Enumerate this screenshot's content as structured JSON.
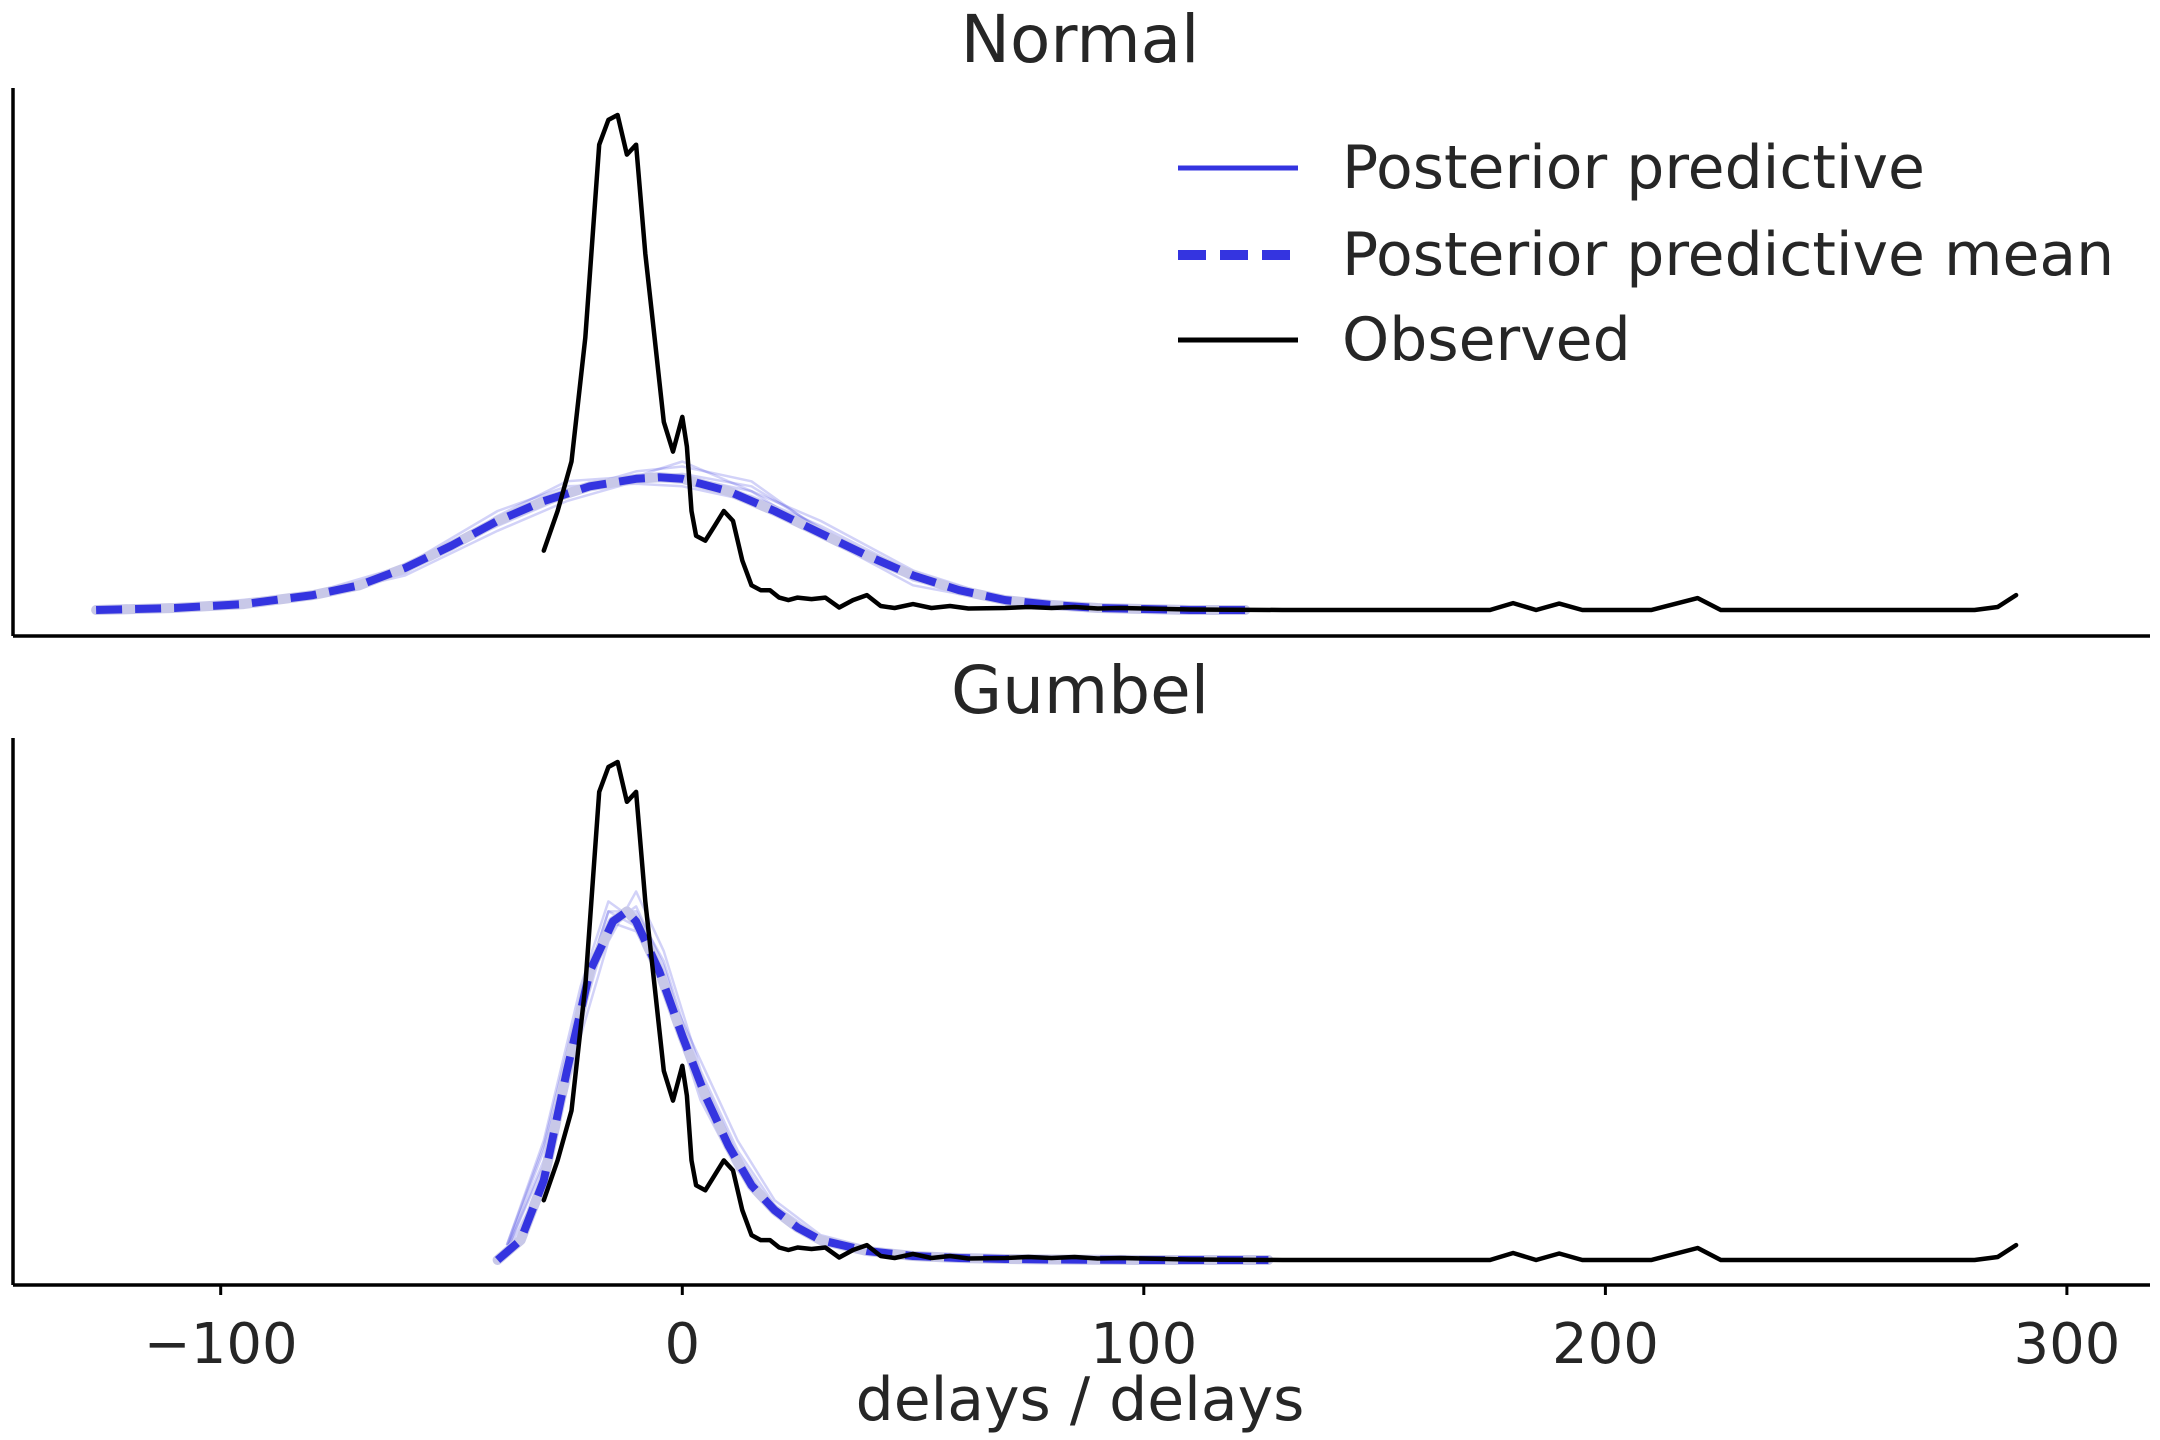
{
  "chart_data": {
    "type": "line",
    "xlabel": "delays / delays",
    "xlim": [
      -145,
      318
    ],
    "xticks": [
      -100,
      0,
      100,
      200,
      300
    ],
    "xtick_labels": [
      "−100",
      "0",
      "100",
      "200",
      "300"
    ],
    "grid": false,
    "legend_position": "top-right",
    "colors": {
      "predictive": "#3434e0",
      "observed": "#000000",
      "predictive_light": "#b8b8ef",
      "mean_light": "#c8c8e8"
    },
    "legend": [
      {
        "label": "Posterior predictive",
        "style": "solid",
        "color": "#3434e0"
      },
      {
        "label": "Posterior predictive mean",
        "style": "dashed",
        "color": "#3434e0"
      },
      {
        "label": "Observed",
        "style": "solid",
        "color": "#000000"
      }
    ],
    "panels": [
      {
        "title": "Normal",
        "ylim": [
          0,
          1.06
        ],
        "predictive_mean": {
          "name": "Posterior predictive mean",
          "x": [
            -127,
            -110,
            -95,
            -80,
            -70,
            -60,
            -50,
            -40,
            -30,
            -20,
            -10,
            -5,
            0,
            10,
            20,
            30,
            40,
            50,
            60,
            70,
            80,
            90,
            100,
            110,
            122
          ],
          "y": [
            0.0,
            0.004,
            0.012,
            0.03,
            0.05,
            0.085,
            0.13,
            0.18,
            0.22,
            0.25,
            0.265,
            0.268,
            0.265,
            0.24,
            0.2,
            0.155,
            0.11,
            0.07,
            0.04,
            0.02,
            0.01,
            0.004,
            0.002,
            0.0,
            0.0
          ]
        },
        "predictive_samples": {
          "name": "Posterior predictive",
          "x": [
            -110,
            -80,
            -60,
            -40,
            -25,
            -10,
            0,
            15,
            30,
            50,
            70,
            100
          ],
          "draws": [
            [
              0.004,
              0.03,
              0.08,
              0.18,
              0.24,
              0.28,
              0.29,
              0.26,
              0.16,
              0.06,
              0.016,
              0.002
            ],
            [
              0.004,
              0.026,
              0.07,
              0.16,
              0.22,
              0.26,
              0.27,
              0.24,
              0.18,
              0.08,
              0.02,
              0.002
            ],
            [
              0.006,
              0.035,
              0.09,
              0.2,
              0.25,
              0.255,
              0.25,
              0.22,
              0.15,
              0.07,
              0.024,
              0.004
            ],
            [
              0.005,
              0.03,
              0.085,
              0.17,
              0.23,
              0.27,
              0.3,
              0.24,
              0.15,
              0.05,
              0.015,
              0.003
            ],
            [
              0.003,
              0.028,
              0.075,
              0.19,
              0.26,
              0.27,
              0.26,
              0.23,
              0.17,
              0.075,
              0.022,
              0.003
            ],
            [
              0.005,
              0.032,
              0.082,
              0.175,
              0.235,
              0.265,
              0.275,
              0.25,
              0.165,
              0.065,
              0.02,
              0.003
            ]
          ]
        },
        "observed": {
          "name": "Observed",
          "x": [
            -30,
            -27,
            -24,
            -21,
            -18,
            -16,
            -14,
            -12,
            -10,
            -8,
            -6,
            -4,
            -2,
            0,
            1,
            2,
            3,
            5,
            7,
            9,
            11,
            13,
            15,
            17,
            19,
            21,
            23,
            25,
            28,
            31,
            34,
            37,
            40,
            43,
            46,
            50,
            54,
            58,
            62,
            70,
            75,
            80,
            85,
            90,
            95,
            100,
            110,
            130,
            150,
            175,
            180,
            185,
            190,
            195,
            210,
            220,
            225,
            240,
            260,
            280,
            285,
            289
          ],
          "y": [
            0.12,
            0.2,
            0.3,
            0.55,
            0.94,
            0.99,
            1.0,
            0.92,
            0.94,
            0.72,
            0.55,
            0.38,
            0.32,
            0.39,
            0.33,
            0.2,
            0.15,
            0.14,
            0.17,
            0.2,
            0.18,
            0.1,
            0.05,
            0.04,
            0.04,
            0.025,
            0.02,
            0.025,
            0.022,
            0.025,
            0.005,
            0.02,
            0.03,
            0.008,
            0.004,
            0.012,
            0.004,
            0.008,
            0.003,
            0.004,
            0.006,
            0.004,
            0.006,
            0.003,
            0.004,
            0.003,
            0.001,
            0.0,
            0.0,
            0.0,
            0.014,
            0.0,
            0.013,
            0.0,
            0.0,
            0.024,
            0.0,
            0.0,
            0.0,
            0.0,
            0.006,
            0.03
          ]
        }
      },
      {
        "title": "Gumbel",
        "ylim": [
          0,
          1.06
        ],
        "predictive_mean": {
          "name": "Posterior predictive mean",
          "x": [
            -40,
            -35,
            -30,
            -25,
            -20,
            -15,
            -12,
            -10,
            -5,
            0,
            5,
            10,
            15,
            20,
            25,
            30,
            40,
            50,
            60,
            70,
            80,
            100,
            127
          ],
          "y": [
            0.0,
            0.04,
            0.16,
            0.38,
            0.58,
            0.68,
            0.7,
            0.68,
            0.58,
            0.45,
            0.33,
            0.23,
            0.15,
            0.1,
            0.065,
            0.04,
            0.018,
            0.008,
            0.004,
            0.002,
            0.001,
            0.0,
            0.0
          ]
        },
        "predictive_samples": {
          "name": "Posterior predictive",
          "x": [
            -38,
            -30,
            -22,
            -16,
            -10,
            -4,
            4,
            12,
            20,
            30,
            45,
            70
          ],
          "draws": [
            [
              0.02,
              0.2,
              0.52,
              0.7,
              0.7,
              0.6,
              0.36,
              0.2,
              0.1,
              0.04,
              0.01,
              0.001
            ],
            [
              0.03,
              0.24,
              0.55,
              0.72,
              0.68,
              0.55,
              0.32,
              0.18,
              0.09,
              0.035,
              0.008,
              0.001
            ],
            [
              0.015,
              0.16,
              0.45,
              0.64,
              0.74,
              0.62,
              0.38,
              0.22,
              0.11,
              0.045,
              0.012,
              0.002
            ],
            [
              0.025,
              0.22,
              0.5,
              0.68,
              0.66,
              0.56,
              0.4,
              0.24,
              0.12,
              0.05,
              0.014,
              0.002
            ],
            [
              0.02,
              0.19,
              0.48,
              0.67,
              0.71,
              0.59,
              0.35,
              0.19,
              0.095,
              0.04,
              0.01,
              0.001
            ],
            [
              0.03,
              0.23,
              0.53,
              0.7,
              0.67,
              0.57,
              0.37,
              0.21,
              0.1,
              0.042,
              0.011,
              0.001
            ]
          ]
        },
        "observed": {
          "name": "Observed",
          "x": [
            -30,
            -27,
            -24,
            -21,
            -18,
            -16,
            -14,
            -12,
            -10,
            -8,
            -6,
            -4,
            -2,
            0,
            1,
            2,
            3,
            5,
            7,
            9,
            11,
            13,
            15,
            17,
            19,
            21,
            23,
            25,
            28,
            31,
            34,
            37,
            40,
            43,
            46,
            50,
            54,
            58,
            62,
            70,
            75,
            80,
            85,
            90,
            95,
            100,
            110,
            130,
            150,
            175,
            180,
            185,
            190,
            195,
            210,
            220,
            225,
            240,
            260,
            280,
            285,
            289
          ],
          "y": [
            0.12,
            0.2,
            0.3,
            0.55,
            0.94,
            0.99,
            1.0,
            0.92,
            0.94,
            0.72,
            0.55,
            0.38,
            0.32,
            0.39,
            0.33,
            0.2,
            0.15,
            0.14,
            0.17,
            0.2,
            0.18,
            0.1,
            0.05,
            0.04,
            0.04,
            0.025,
            0.02,
            0.025,
            0.022,
            0.025,
            0.005,
            0.02,
            0.03,
            0.008,
            0.004,
            0.012,
            0.004,
            0.008,
            0.003,
            0.004,
            0.006,
            0.004,
            0.006,
            0.003,
            0.004,
            0.003,
            0.001,
            0.0,
            0.0,
            0.0,
            0.014,
            0.0,
            0.013,
            0.0,
            0.0,
            0.024,
            0.0,
            0.0,
            0.0,
            0.0,
            0.006,
            0.03
          ]
        }
      }
    ]
  }
}
